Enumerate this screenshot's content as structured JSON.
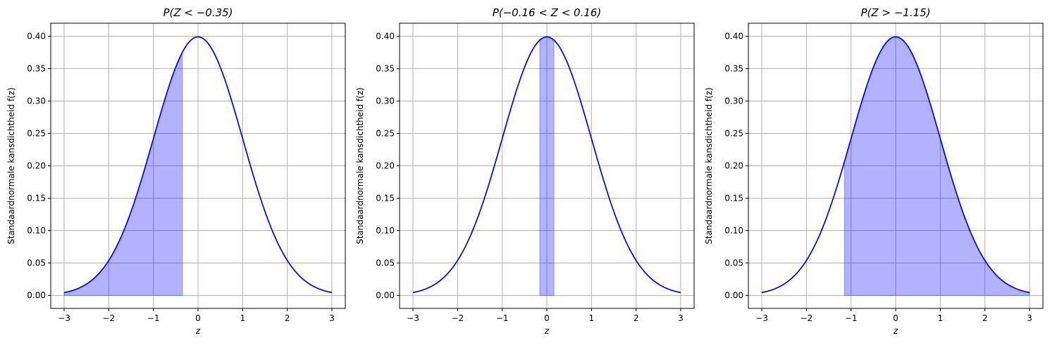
{
  "colors": {
    "curve": "#0000ff",
    "fill": "#0000ff",
    "grid": "#b0b0b0",
    "background": "#ffffff"
  },
  "chart_data": [
    {
      "type": "area",
      "title": "P(Z < −0.35)",
      "xlabel": "z",
      "ylabel": "Standaardnormale kansdichtheid f(z)",
      "xlim": [
        -3.3,
        3.3
      ],
      "ylim": [
        -0.02,
        0.42
      ],
      "xticks": [
        -3,
        -2,
        -1,
        0,
        1,
        2,
        3
      ],
      "xtick_labels": [
        "−3",
        "−2",
        "−1",
        "0",
        "1",
        "2",
        "3"
      ],
      "yticks": [
        0.0,
        0.05,
        0.1,
        0.15,
        0.2,
        0.25,
        0.3,
        0.35,
        0.4
      ],
      "ytick_labels": [
        "0.00",
        "0.05",
        "0.10",
        "0.15",
        "0.20",
        "0.25",
        "0.30",
        "0.35",
        "0.40"
      ],
      "grid": true,
      "series": [
        {
          "function": "standard normal pdf",
          "x_range": [
            -3,
            3
          ],
          "color": "#0000ff"
        }
      ],
      "shaded_region": {
        "from": -3,
        "to": -0.35,
        "color": "#0000ff",
        "alpha": 0.3
      }
    },
    {
      "type": "area",
      "title": "P(−0.16 < Z < 0.16)",
      "xlabel": "z",
      "ylabel": "Standaardnormale kansdichtheid f(z)",
      "xlim": [
        -3.3,
        3.3
      ],
      "ylim": [
        -0.02,
        0.42
      ],
      "xticks": [
        -3,
        -2,
        -1,
        0,
        1,
        2,
        3
      ],
      "xtick_labels": [
        "−3",
        "−2",
        "−1",
        "0",
        "1",
        "2",
        "3"
      ],
      "yticks": [
        0.0,
        0.05,
        0.1,
        0.15,
        0.2,
        0.25,
        0.3,
        0.35,
        0.4
      ],
      "ytick_labels": [
        "0.00",
        "0.05",
        "0.10",
        "0.15",
        "0.20",
        "0.25",
        "0.30",
        "0.35",
        "0.40"
      ],
      "grid": true,
      "series": [
        {
          "function": "standard normal pdf",
          "x_range": [
            -3,
            3
          ],
          "color": "#0000ff"
        }
      ],
      "shaded_region": {
        "from": -0.16,
        "to": 0.16,
        "color": "#0000ff",
        "alpha": 0.3
      }
    },
    {
      "type": "area",
      "title": "P(Z > −1.15)",
      "xlabel": "z",
      "ylabel": "Standaardnormale kansdichtheid f(z)",
      "xlim": [
        -3.3,
        3.3
      ],
      "ylim": [
        -0.02,
        0.42
      ],
      "xticks": [
        -3,
        -2,
        -1,
        0,
        1,
        2,
        3
      ],
      "xtick_labels": [
        "−3",
        "−2",
        "−1",
        "0",
        "1",
        "2",
        "3"
      ],
      "yticks": [
        0.0,
        0.05,
        0.1,
        0.15,
        0.2,
        0.25,
        0.3,
        0.35,
        0.4
      ],
      "ytick_labels": [
        "0.00",
        "0.05",
        "0.10",
        "0.15",
        "0.20",
        "0.25",
        "0.30",
        "0.35",
        "0.40"
      ],
      "grid": true,
      "series": [
        {
          "function": "standard normal pdf",
          "x_range": [
            -3,
            3
          ],
          "color": "#0000ff"
        }
      ],
      "shaded_region": {
        "from": -1.15,
        "to": 3,
        "color": "#0000ff",
        "alpha": 0.3
      }
    }
  ]
}
